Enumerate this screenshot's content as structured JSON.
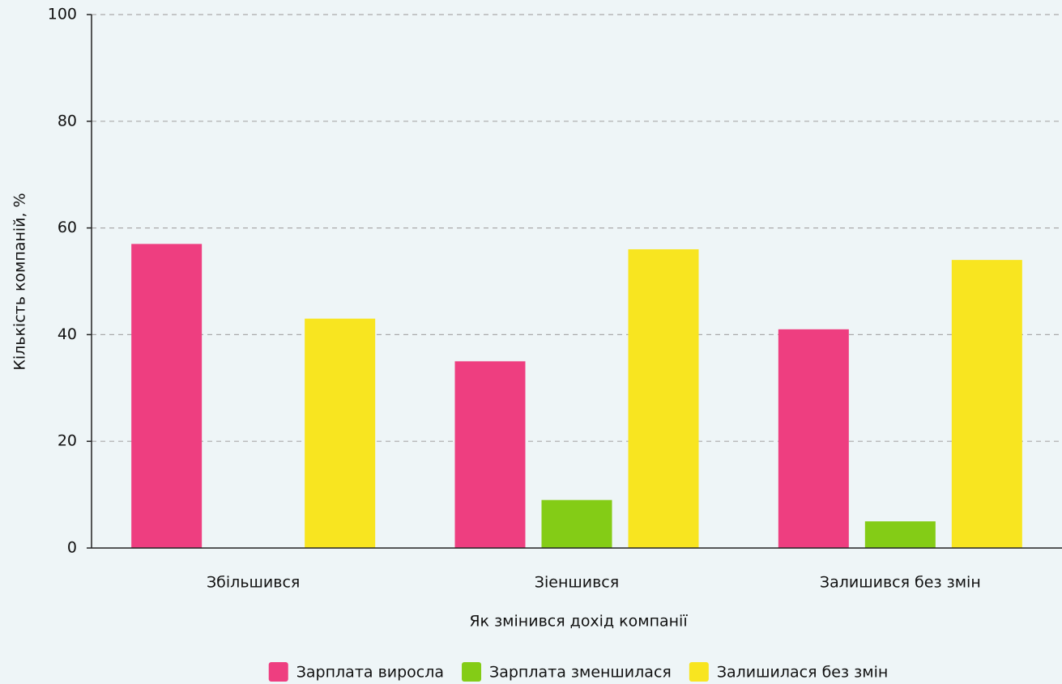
{
  "chart_data": {
    "type": "bar",
    "xlabel": "Як змінився дохід компанії",
    "ylabel": "Кількість компаній, %",
    "categories": [
      "Збільшився",
      "Зіеншився",
      "Залишився без змін"
    ],
    "series": [
      {
        "name": "Зарплата виросла",
        "color": "#ee3e80",
        "values": [
          57,
          35,
          41
        ]
      },
      {
        "name": "Зарплата зменшилася",
        "color": "#84cc16",
        "values": [
          0,
          9,
          5
        ]
      },
      {
        "name": "Залишилася без змін",
        "color": "#f8e520",
        "values": [
          43,
          56,
          54
        ]
      }
    ],
    "ylim": [
      0,
      100
    ],
    "yticks": [
      0,
      20,
      40,
      60,
      80,
      100
    ],
    "grid": true,
    "legend": "bottom"
  }
}
